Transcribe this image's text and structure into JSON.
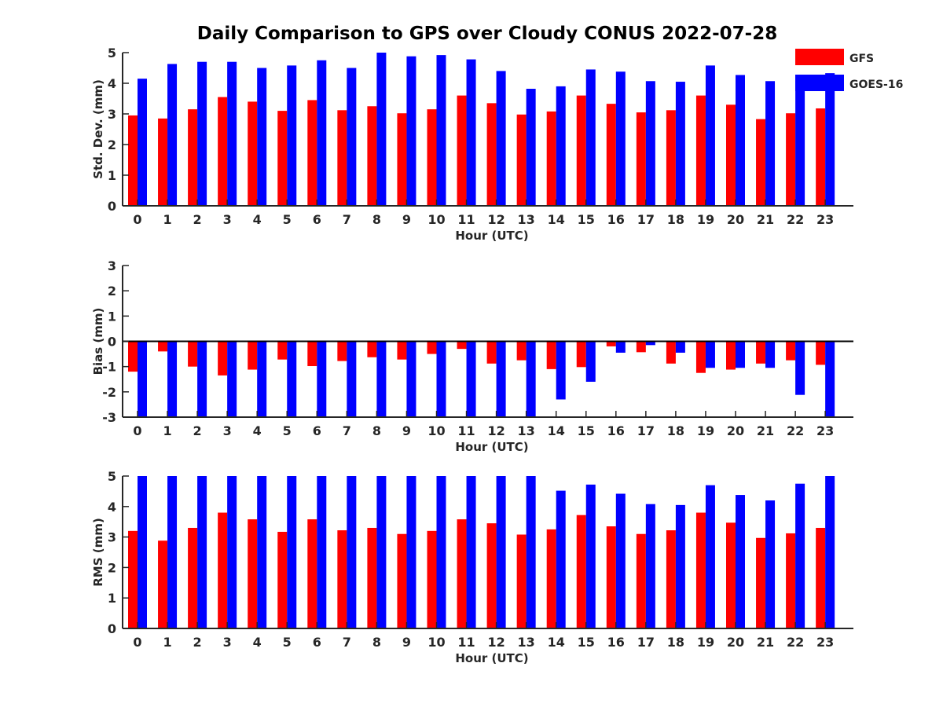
{
  "title": "Daily Comparison to GPS over Cloudy CONUS 2022-07-28",
  "legend": {
    "placement": "top-right",
    "items": [
      {
        "label": "GFS",
        "color": "#ff0000"
      },
      {
        "label": "GOES-16",
        "color": "#0000ff"
      }
    ]
  },
  "chart_data": [
    {
      "type": "bar",
      "xlabel": "Hour (UTC)",
      "ylabel": "Std. Dev. (mm)",
      "ylim": [
        0,
        5
      ],
      "yticks": [
        0,
        1,
        2,
        3,
        4,
        5
      ],
      "categories": [
        "0",
        "1",
        "2",
        "3",
        "4",
        "5",
        "6",
        "7",
        "8",
        "9",
        "10",
        "11",
        "12",
        "13",
        "14",
        "15",
        "16",
        "17",
        "18",
        "19",
        "20",
        "21",
        "22",
        "23"
      ],
      "series": [
        {
          "name": "GFS",
          "color": "#ff0000",
          "values": [
            2.95,
            2.85,
            3.15,
            3.55,
            3.4,
            3.1,
            3.45,
            3.12,
            3.25,
            3.02,
            3.15,
            3.6,
            3.35,
            2.98,
            3.08,
            3.6,
            3.33,
            3.05,
            3.12,
            3.6,
            3.3,
            2.83,
            3.02,
            3.18
          ]
        },
        {
          "name": "GOES-16",
          "color": "#0000ff",
          "values": [
            4.15,
            4.63,
            4.7,
            4.7,
            4.5,
            4.58,
            4.75,
            4.5,
            5.0,
            4.88,
            4.92,
            4.78,
            4.4,
            3.82,
            3.9,
            4.45,
            4.38,
            4.07,
            4.05,
            4.58,
            4.27,
            4.07,
            4.22,
            4.33
          ]
        }
      ]
    },
    {
      "type": "bar",
      "xlabel": "Hour (UTC)",
      "ylabel": "Bias (mm)",
      "ylim": [
        -3,
        3
      ],
      "yticks": [
        -3,
        -2,
        -1,
        0,
        1,
        2,
        3
      ],
      "categories": [
        "0",
        "1",
        "2",
        "3",
        "4",
        "5",
        "6",
        "7",
        "8",
        "9",
        "10",
        "11",
        "12",
        "13",
        "14",
        "15",
        "16",
        "17",
        "18",
        "19",
        "20",
        "21",
        "22",
        "23"
      ],
      "series": [
        {
          "name": "GFS",
          "color": "#ff0000",
          "values": [
            -1.2,
            -0.4,
            -1.0,
            -1.35,
            -1.12,
            -0.72,
            -0.98,
            -0.78,
            -0.63,
            -0.72,
            -0.5,
            -0.3,
            -0.88,
            -0.75,
            -1.1,
            -1.02,
            -0.2,
            -0.43,
            -0.88,
            -1.25,
            -1.12,
            -0.88,
            -0.75,
            -0.93
          ]
        },
        {
          "name": "GOES-16",
          "color": "#0000ff",
          "values": [
            -3.0,
            -3.0,
            -3.0,
            -3.0,
            -3.0,
            -3.0,
            -3.0,
            -3.0,
            -3.0,
            -3.0,
            -3.0,
            -3.0,
            -3.0,
            -3.0,
            -2.3,
            -1.6,
            -0.45,
            -0.15,
            -0.45,
            -1.05,
            -1.05,
            -1.05,
            -2.12,
            -3.0
          ]
        }
      ]
    },
    {
      "type": "bar",
      "xlabel": "Hour (UTC)",
      "ylabel": "RMS (mm)",
      "ylim": [
        0,
        5
      ],
      "yticks": [
        0,
        1,
        2,
        3,
        4,
        5
      ],
      "categories": [
        "0",
        "1",
        "2",
        "3",
        "4",
        "5",
        "6",
        "7",
        "8",
        "9",
        "10",
        "11",
        "12",
        "13",
        "14",
        "15",
        "16",
        "17",
        "18",
        "19",
        "20",
        "21",
        "22",
        "23"
      ],
      "series": [
        {
          "name": "GFS",
          "color": "#ff0000",
          "values": [
            3.2,
            2.88,
            3.3,
            3.8,
            3.58,
            3.17,
            3.58,
            3.22,
            3.3,
            3.1,
            3.2,
            3.58,
            3.45,
            3.08,
            3.25,
            3.72,
            3.35,
            3.1,
            3.22,
            3.8,
            3.47,
            2.97,
            3.12,
            3.3
          ]
        },
        {
          "name": "GOES-16",
          "color": "#0000ff",
          "values": [
            5.0,
            5.0,
            5.0,
            5.0,
            5.0,
            5.0,
            5.0,
            5.0,
            5.0,
            5.0,
            5.0,
            5.0,
            5.0,
            5.0,
            4.52,
            4.72,
            4.42,
            4.08,
            4.05,
            4.7,
            4.38,
            4.2,
            4.75,
            5.0
          ]
        }
      ]
    }
  ]
}
